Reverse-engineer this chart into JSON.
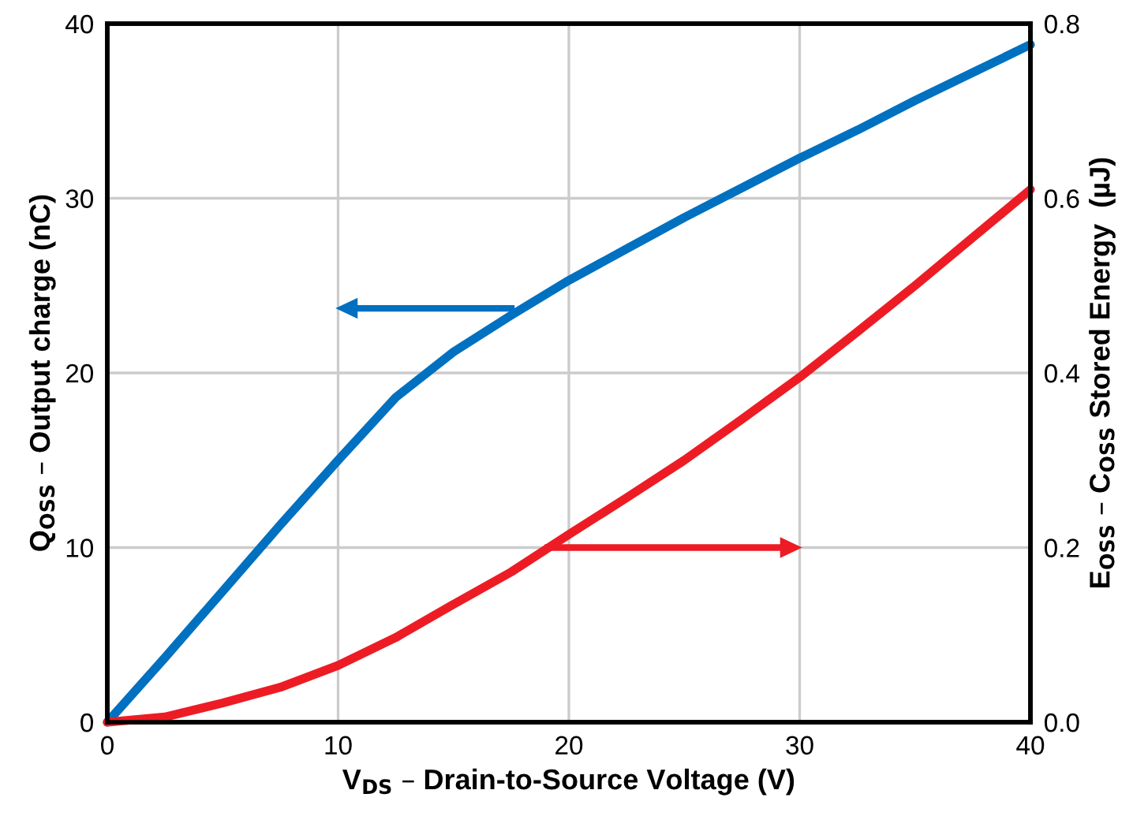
{
  "chart_data": {
    "type": "line",
    "xlabel": "V$_{DS}$ – Drain-to-Source Voltage (V)",
    "ylabel": "Q$_{OSS}$ – Output charge (nC)",
    "y2label": "E$_{OSS}$ – C$_{OSS}$ Stored Energy  (µJ)",
    "xlim": [
      0,
      40
    ],
    "xticks": [
      0,
      10,
      20,
      30,
      40
    ],
    "ylim": [
      0,
      40
    ],
    "yticks": [
      0,
      10,
      20,
      30,
      40
    ],
    "y2lim": [
      0,
      0.8
    ],
    "y2ticks": [
      {
        "value": 0,
        "label": "0.0"
      },
      {
        "value": 0.2,
        "label": "0.2"
      },
      {
        "value": 0.4,
        "label": "0.4"
      },
      {
        "value": 0.6,
        "label": "0.6"
      },
      {
        "value": 0.8,
        "label": "0.8"
      }
    ],
    "grid": true,
    "series": [
      {
        "color": "#0070c0",
        "x": [
          0,
          2.5,
          5,
          7.5,
          10,
          12.5,
          15,
          17.5,
          20,
          22.5,
          25,
          27.5,
          30,
          32.5,
          35,
          37.5,
          40
        ],
        "values": [
          0,
          3.7,
          7.5,
          11.3,
          15,
          18.6,
          21.2,
          23.3,
          25.3,
          27.1,
          28.9,
          30.6,
          32.3,
          33.9,
          35.6,
          37.2,
          38.8
        ]
      },
      {
        "color": "#ed1c24",
        "axis": "y2",
        "x": [
          0,
          2.5,
          5,
          7.5,
          10,
          12.5,
          15,
          17.5,
          20,
          22.5,
          25,
          27.5,
          30,
          32.5,
          35,
          37.5,
          40
        ],
        "values": [
          0,
          0.006,
          0.022,
          0.04,
          0.065,
          0.097,
          0.135,
          0.172,
          0.215,
          0.257,
          0.3,
          0.347,
          0.395,
          0.447,
          0.5,
          0.555,
          0.61
        ]
      }
    ]
  }
}
